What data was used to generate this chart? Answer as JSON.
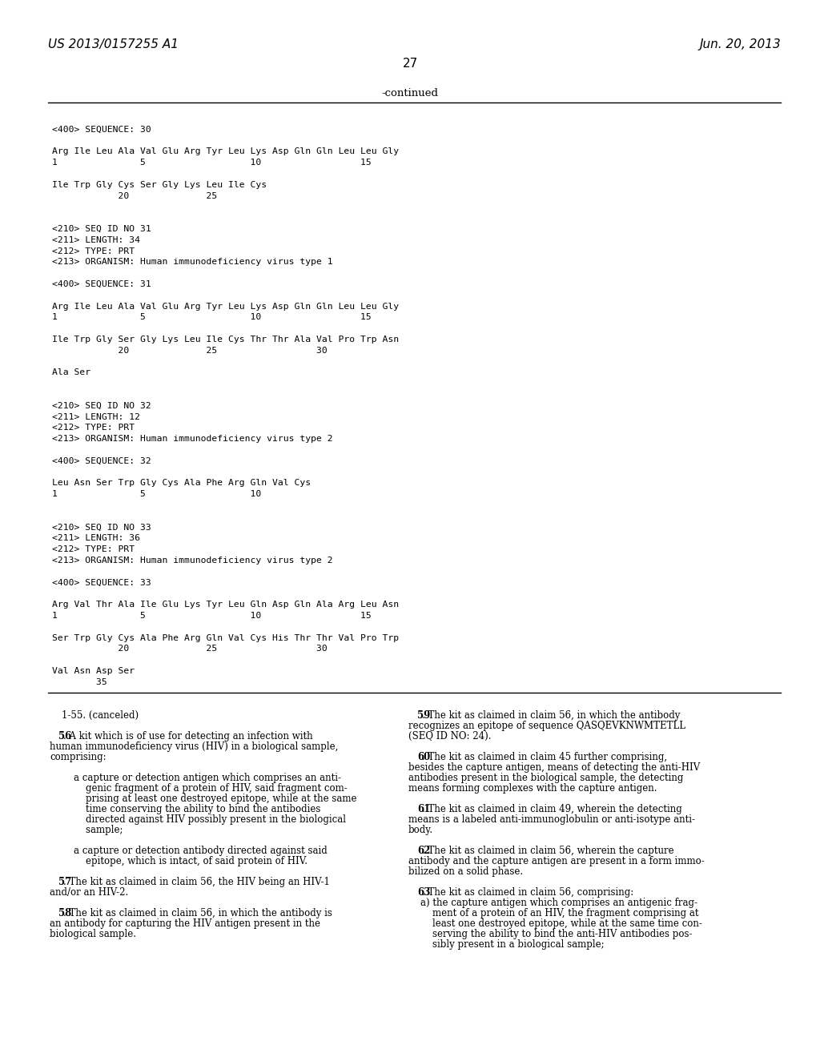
{
  "bg_color": "#ffffff",
  "header_left": "US 2013/0157255 A1",
  "header_right": "Jun. 20, 2013",
  "page_number": "27",
  "continued_label": "-continued",
  "monospace_lines": [
    "",
    "<400> SEQUENCE: 30",
    "",
    "Arg Ile Leu Ala Val Glu Arg Tyr Leu Lys Asp Gln Gln Leu Leu Gly",
    "1               5                   10                  15",
    "",
    "Ile Trp Gly Cys Ser Gly Lys Leu Ile Cys",
    "            20              25",
    "",
    "",
    "<210> SEQ ID NO 31",
    "<211> LENGTH: 34",
    "<212> TYPE: PRT",
    "<213> ORGANISM: Human immunodeficiency virus type 1",
    "",
    "<400> SEQUENCE: 31",
    "",
    "Arg Ile Leu Ala Val Glu Arg Tyr Leu Lys Asp Gln Gln Leu Leu Gly",
    "1               5                   10                  15",
    "",
    "Ile Trp Gly Ser Gly Lys Leu Ile Cys Thr Thr Ala Val Pro Trp Asn",
    "            20              25                  30",
    "",
    "Ala Ser",
    "",
    "",
    "<210> SEQ ID NO 32",
    "<211> LENGTH: 12",
    "<212> TYPE: PRT",
    "<213> ORGANISM: Human immunodeficiency virus type 2",
    "",
    "<400> SEQUENCE: 32",
    "",
    "Leu Asn Ser Trp Gly Cys Ala Phe Arg Gln Val Cys",
    "1               5                   10",
    "",
    "",
    "<210> SEQ ID NO 33",
    "<211> LENGTH: 36",
    "<212> TYPE: PRT",
    "<213> ORGANISM: Human immunodeficiency virus type 2",
    "",
    "<400> SEQUENCE: 33",
    "",
    "Arg Val Thr Ala Ile Glu Lys Tyr Leu Gln Asp Gln Ala Arg Leu Asn",
    "1               5                   10                  15",
    "",
    "Ser Trp Gly Cys Ala Phe Arg Gln Val Cys His Thr Thr Val Pro Trp",
    "            20              25                  30",
    "",
    "Val Asn Asp Ser",
    "        35"
  ],
  "claims_left": [
    [
      "    1-55. (canceled)",
      "normal",
      "    ",
      "1-55",
      ". (canceled)"
    ],
    [
      "",
      "normal",
      "",
      "",
      ""
    ],
    [
      "    56. A kit which is of use for detecting an infection with",
      "normal",
      "    ",
      "56",
      ". A kit which is of use for detecting an infection with"
    ],
    [
      "human immunodeficiency virus (HIV) in a biological sample,",
      "normal",
      "",
      "",
      ""
    ],
    [
      "comprising:",
      "normal",
      "",
      "",
      ""
    ],
    [
      "",
      "normal",
      "",
      "",
      ""
    ],
    [
      "        a capture or detection antigen which comprises an anti-",
      "normal",
      "",
      "",
      ""
    ],
    [
      "            genic fragment of a protein of HIV, said fragment com-",
      "normal",
      "",
      "",
      ""
    ],
    [
      "            prising at least one destroyed epitope, while at the same",
      "normal",
      "",
      "",
      ""
    ],
    [
      "            time conserving the ability to bind the antibodies",
      "normal",
      "",
      "",
      ""
    ],
    [
      "            directed against HIV possibly present in the biological",
      "normal",
      "",
      "",
      ""
    ],
    [
      "            sample;",
      "normal",
      "",
      "",
      ""
    ],
    [
      "",
      "normal",
      "",
      "",
      ""
    ],
    [
      "        a capture or detection antibody directed against said",
      "normal",
      "",
      "",
      ""
    ],
    [
      "            epitope, which is intact, of said protein of HIV.",
      "normal",
      "",
      "",
      ""
    ],
    [
      "",
      "normal",
      "",
      "",
      ""
    ],
    [
      "    57. The kit as claimed in claim 56, the HIV being an HIV-1",
      "normal",
      "    ",
      "57",
      ". The kit as claimed in claim 56, the HIV being an HIV-1"
    ],
    [
      "and/or an HIV-2.",
      "normal",
      "",
      "",
      ""
    ],
    [
      "",
      "normal",
      "",
      "",
      ""
    ],
    [
      "    58. The kit as claimed in claim 56, in which the antibody is",
      "normal",
      "    ",
      "58",
      ". The kit as claimed in claim 56, in which the antibody is"
    ],
    [
      "an antibody for capturing the HIV antigen present in the",
      "normal",
      "",
      "",
      ""
    ],
    [
      "biological sample.",
      "normal",
      "",
      "",
      ""
    ]
  ],
  "claims_right": [
    [
      "    59. The kit as claimed in claim 56, in which the antibody",
      "normal",
      "    ",
      "59",
      ". The kit as claimed in claim 56, in which the antibody"
    ],
    [
      "recognizes an epitope of sequence QASQEVKNWMTETLL",
      "normal",
      "",
      "",
      ""
    ],
    [
      "(SEQ ID NO: 24).",
      "normal",
      "",
      "",
      ""
    ],
    [
      "",
      "normal",
      "",
      "",
      ""
    ],
    [
      "    60. The kit as claimed in claim 45 further comprising,",
      "normal",
      "    ",
      "60",
      ". The kit as claimed in claim 45 further comprising,"
    ],
    [
      "besides the capture antigen, means of detecting the anti-HIV",
      "normal",
      "",
      "",
      ""
    ],
    [
      "antibodies present in the biological sample, the detecting",
      "normal",
      "",
      "",
      ""
    ],
    [
      "means forming complexes with the capture antigen.",
      "normal",
      "",
      "",
      ""
    ],
    [
      "",
      "normal",
      "",
      "",
      ""
    ],
    [
      "    61. The kit as claimed in claim 49, wherein the detecting",
      "normal",
      "    ",
      "61",
      ". The kit as claimed in claim 49, wherein the detecting"
    ],
    [
      "means is a labeled anti-immunoglobulin or anti-isotype anti-",
      "normal",
      "",
      "",
      ""
    ],
    [
      "body.",
      "normal",
      "",
      "",
      ""
    ],
    [
      "",
      "normal",
      "",
      "",
      ""
    ],
    [
      "    62. The kit as claimed in claim 56, wherein the capture",
      "normal",
      "    ",
      "62",
      ". The kit as claimed in claim 56, wherein the capture"
    ],
    [
      "antibody and the capture antigen are present in a form immo-",
      "normal",
      "",
      "",
      ""
    ],
    [
      "bilized on a solid phase.",
      "normal",
      "",
      "",
      ""
    ],
    [
      "",
      "normal",
      "",
      "",
      ""
    ],
    [
      "    63. The kit as claimed in claim 56, comprising:",
      "normal",
      "    ",
      "63",
      ". The kit as claimed in claim 56, comprising:"
    ],
    [
      "    a) the capture antigen which comprises an antigenic frag-",
      "normal",
      "",
      "",
      ""
    ],
    [
      "        ment of a protein of an HIV, the fragment comprising at",
      "normal",
      "",
      "",
      ""
    ],
    [
      "        least one destroyed epitope, while at the same time con-",
      "normal",
      "",
      "",
      ""
    ],
    [
      "        serving the ability to bind the anti-HIV antibodies pos-",
      "normal",
      "",
      "",
      ""
    ],
    [
      "        sibly present in a biological sample;",
      "normal",
      "",
      "",
      ""
    ]
  ],
  "bold_claim_numbers": [
    "56",
    "45",
    "49",
    "56",
    "56",
    "56",
    "56",
    "49",
    "56",
    "56"
  ]
}
